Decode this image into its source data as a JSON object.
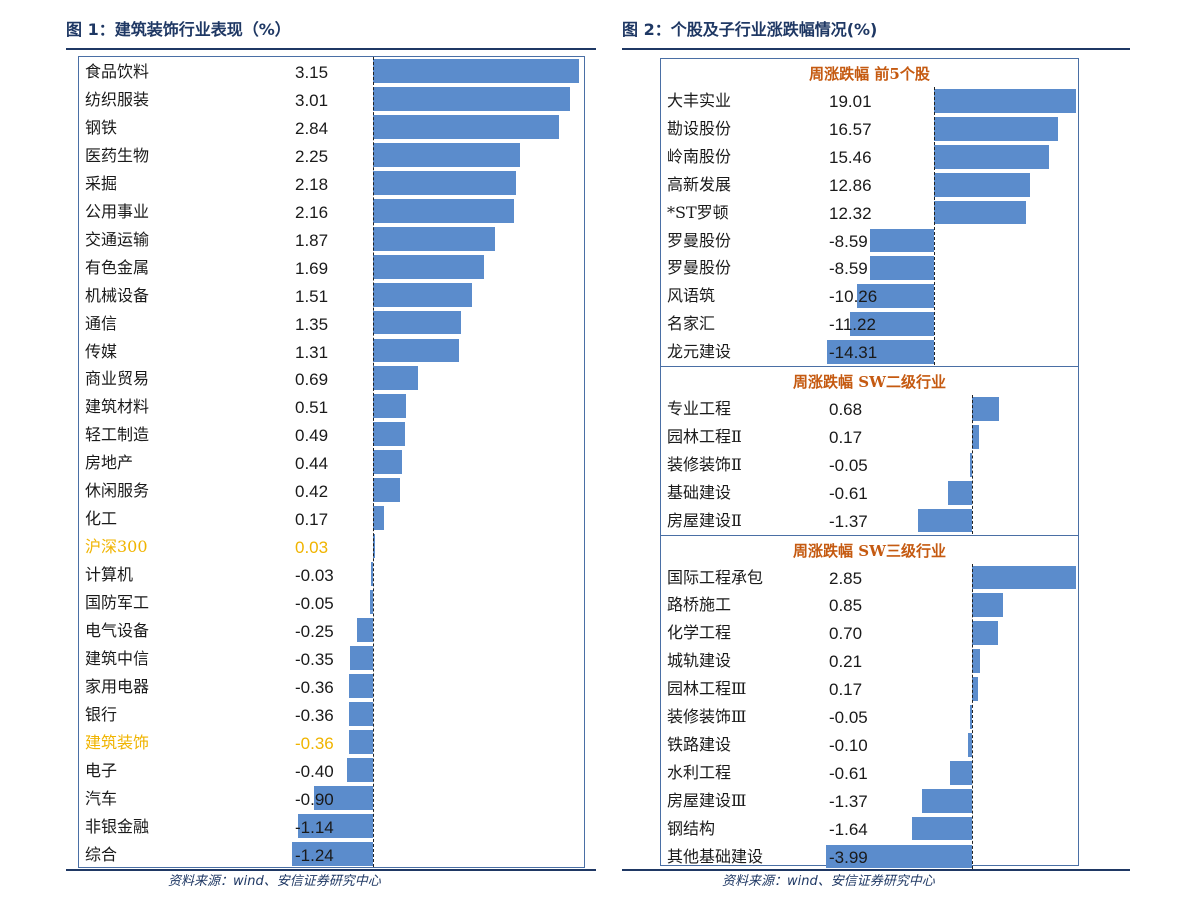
{
  "left": {
    "title": "图 1：建筑装饰行业表现（%）",
    "source": "资料来源：wind、安信证券研究中心",
    "colors": {
      "bar": "#5b8ccc",
      "highlight": "#f0b400",
      "title": "#1f3864"
    },
    "chart_data": {
      "type": "bar",
      "orientation": "horizontal",
      "categories": [
        "食品饮料",
        "纺织服装",
        "钢铁",
        "医药生物",
        "采掘",
        "公用事业",
        "交通运输",
        "有色金属",
        "机械设备",
        "通信",
        "传媒",
        "商业贸易",
        "建筑材料",
        "轻工制造",
        "房地产",
        "休闲服务",
        "化工",
        "沪深300",
        "计算机",
        "国防军工",
        "电气设备",
        "建筑中信",
        "家用电器",
        "银行",
        "建筑装饰",
        "电子",
        "汽车",
        "非银金融",
        "综合"
      ],
      "values": [
        "3.15",
        "3.01",
        "2.84",
        "2.25",
        "2.18",
        "2.16",
        "1.87",
        "1.69",
        "1.51",
        "1.35",
        "1.31",
        "0.69",
        "0.51",
        "0.49",
        "0.44",
        "0.42",
        "0.17",
        "0.03",
        "-0.03",
        "-0.05",
        "-0.25",
        "-0.35",
        "-0.36",
        "-0.36",
        "-0.36",
        "-0.40",
        "-0.90",
        "-1.14",
        "-1.24"
      ],
      "highlighted": [
        "沪深300",
        "建筑装饰"
      ]
    }
  },
  "right": {
    "title": "图 2：个股及子行业涨跌幅情况(%)",
    "source": "资料来源：wind、安信证券研究中心",
    "sections": [
      {
        "header": "周涨跌幅  前5个股",
        "chart_data": {
          "type": "bar",
          "orientation": "horizontal",
          "categories": [
            "大丰实业",
            "勘设股份",
            "岭南股份",
            "高新发展",
            "*ST罗顿",
            "罗曼股份",
            "罗曼股份",
            "风语筑",
            "名家汇",
            "龙元建设"
          ],
          "values": [
            "19.01",
            "16.57",
            "15.46",
            "12.86",
            "12.32",
            "-8.59",
            "-8.59",
            "-10.26",
            "-11.22",
            "-14.31"
          ]
        }
      },
      {
        "header": "周涨跌幅  SW二级行业",
        "chart_data": {
          "type": "bar",
          "orientation": "horizontal",
          "categories": [
            "专业工程",
            "园林工程Ⅱ",
            "装修装饰Ⅱ",
            "基础建设",
            "房屋建设Ⅱ"
          ],
          "values": [
            "0.68",
            "0.17",
            "-0.05",
            "-0.61",
            "-1.37"
          ]
        }
      },
      {
        "header": "周涨跌幅  SW三级行业",
        "chart_data": {
          "type": "bar",
          "orientation": "horizontal",
          "categories": [
            "国际工程承包",
            "路桥施工",
            "化学工程",
            "城轨建设",
            "园林工程Ⅲ",
            "装修装饰Ⅲ",
            "铁路建设",
            "水利工程",
            "房屋建设Ⅲ",
            "钢结构",
            "其他基础建设"
          ],
          "values": [
            "2.85",
            "0.85",
            "0.70",
            "0.21",
            "0.17",
            "-0.05",
            "-0.10",
            "-0.61",
            "-1.37",
            "-1.64",
            "-3.99"
          ]
        }
      }
    ]
  }
}
